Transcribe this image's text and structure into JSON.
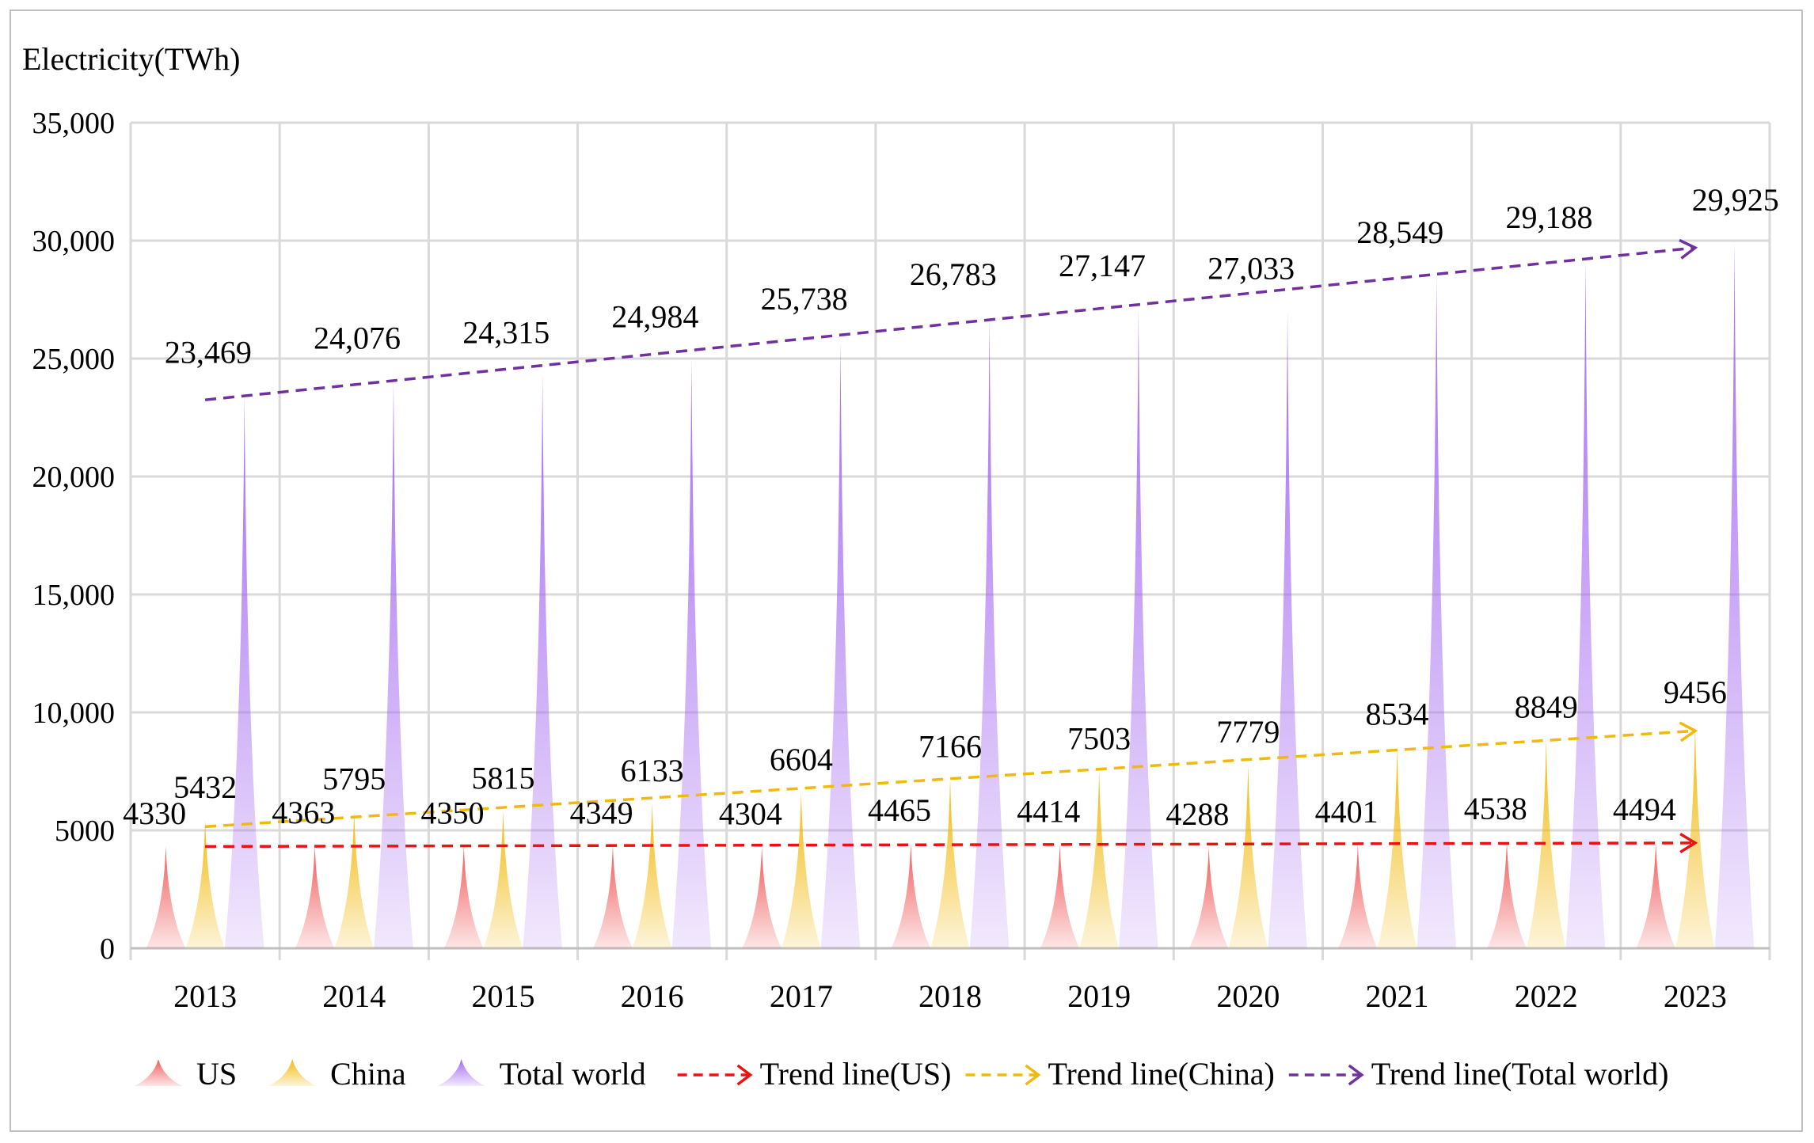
{
  "chart_data": {
    "type": "bar",
    "subtype": "triangle-columns",
    "ylabel": "Electricity(TWh)",
    "xlabel": "",
    "ylim": [
      0,
      35000
    ],
    "y_ticks": [
      0,
      5000,
      10000,
      15000,
      20000,
      25000,
      30000,
      35000
    ],
    "y_tick_labels": [
      "0",
      "5000",
      "10,000",
      "15,000",
      "20,000",
      "25,000",
      "30,000",
      "35,000"
    ],
    "grid": true,
    "legend_position": "bottom",
    "categories": [
      "2013",
      "2014",
      "2015",
      "2016",
      "2017",
      "2018",
      "2019",
      "2020",
      "2021",
      "2022",
      "2023"
    ],
    "series": [
      {
        "name": "US",
        "color": "#f05a5a",
        "values": [
          4330,
          4363,
          4350,
          4349,
          4304,
          4465,
          4414,
          4288,
          4401,
          4538,
          4494
        ],
        "labels": [
          "4330",
          "4363",
          "4350",
          "4349",
          "4304",
          "4465",
          "4414",
          "4288",
          "4401",
          "4538",
          "4494"
        ]
      },
      {
        "name": "China",
        "color": "#f2b90d",
        "values": [
          5432,
          5795,
          5815,
          6133,
          6604,
          7166,
          7503,
          7779,
          8534,
          8849,
          9456
        ],
        "labels": [
          "5432",
          "5795",
          "5815",
          "6133",
          "6604",
          "7166",
          "7503",
          "7779",
          "8534",
          "8849",
          "9456"
        ]
      },
      {
        "name": "Total world",
        "color": "#a46af0",
        "values": [
          23469,
          24076,
          24315,
          24984,
          25738,
          26783,
          27147,
          27033,
          28549,
          29188,
          29925
        ],
        "labels": [
          "23,469",
          "24,076",
          "24,315",
          "24,984",
          "25,738",
          "26,783",
          "27,147",
          "27,033",
          "28,549",
          "29,188",
          "29,925"
        ]
      }
    ],
    "trendlines": [
      {
        "name": "Trend line(US)",
        "color": "#ee1111",
        "series_index": 0
      },
      {
        "name": "Trend line(China)",
        "color": "#f2b90d",
        "series_index": 1
      },
      {
        "name": "Trend line(Total world)",
        "color": "#7030a0",
        "series_index": 2
      }
    ]
  }
}
